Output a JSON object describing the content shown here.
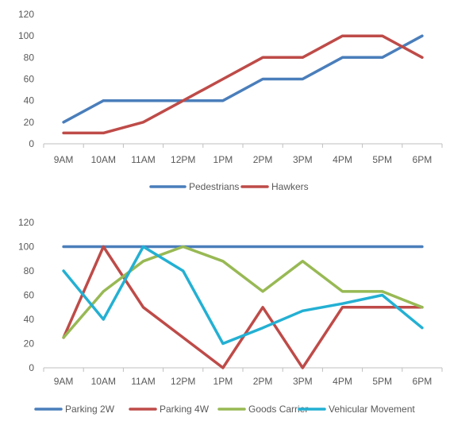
{
  "chart_data": [
    {
      "type": "line",
      "title": "",
      "xlabel": "",
      "ylabel": "",
      "categories": [
        "9AM",
        "10AM",
        "11AM",
        "12PM",
        "1PM",
        "2PM",
        "3PM",
        "4PM",
        "5PM",
        "6PM"
      ],
      "ylim": [
        0,
        120
      ],
      "yticks": [
        0,
        20,
        40,
        60,
        80,
        100,
        120
      ],
      "grid": false,
      "legend_position": "bottom",
      "series": [
        {
          "name": "Pedestrians",
          "color": "#4a7ebb",
          "values": [
            20,
            40,
            40,
            40,
            40,
            60,
            60,
            80,
            80,
            100
          ]
        },
        {
          "name": "Hawkers",
          "color": "#be4b48",
          "values": [
            10,
            10,
            20,
            40,
            60,
            80,
            80,
            100,
            100,
            80
          ]
        }
      ]
    },
    {
      "type": "line",
      "title": "",
      "xlabel": "",
      "ylabel": "",
      "categories": [
        "9AM",
        "10AM",
        "11AM",
        "12PM",
        "1PM",
        "2PM",
        "3PM",
        "4PM",
        "5PM",
        "6PM"
      ],
      "ylim": [
        0,
        120
      ],
      "yticks": [
        0,
        20,
        40,
        60,
        80,
        100,
        120
      ],
      "grid": false,
      "legend_position": "bottom",
      "series": [
        {
          "name": "Parking 2W",
          "color": "#4a7ebb",
          "values": [
            100,
            100,
            100,
            100,
            100,
            100,
            100,
            100,
            100,
            100
          ]
        },
        {
          "name": "Parking 4W",
          "color": "#be4b48",
          "values": [
            25,
            100,
            50,
            25,
            0,
            50,
            0,
            50,
            50,
            50
          ]
        },
        {
          "name": "Goods Carrier",
          "color": "#98b954",
          "values": [
            25,
            63,
            88,
            100,
            88,
            63,
            88,
            63,
            63,
            50
          ]
        },
        {
          "name": "Vehicular Movement",
          "color": "#23b0d3",
          "values": [
            80,
            40,
            100,
            80,
            20,
            33,
            47,
            53,
            60,
            33
          ]
        }
      ]
    }
  ]
}
